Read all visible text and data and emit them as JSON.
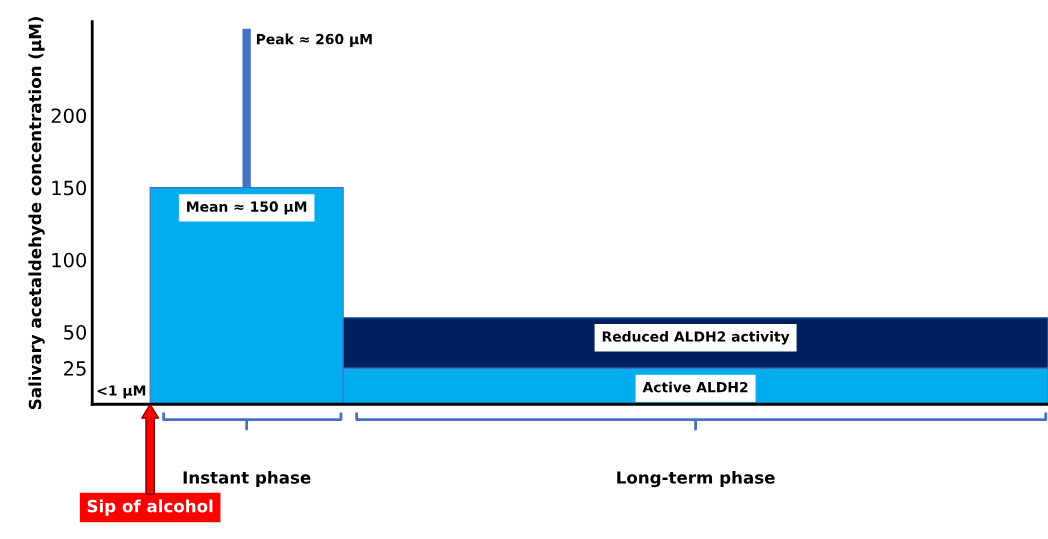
{
  "chart_data": {
    "type": "bar",
    "stacked": true,
    "ylabel": "Salivary acetaldehyde concentration (µM)",
    "categories": [
      "Instant phase",
      "Long-term phase"
    ],
    "series": [
      {
        "color": "#00aeef",
        "values": [
          150,
          25
        ],
        "errors": [
          [
            150,
            260
          ],
          null
        ]
      },
      {
        "color": "#002060",
        "values": [
          null,
          35
        ]
      }
    ],
    "ylim": [
      0,
      265
    ],
    "yticks": [
      25,
      50,
      100,
      150,
      200
    ],
    "grid": false,
    "legend": false,
    "annotations": [
      {
        "text": "Peak ≈ 260 µM",
        "x": "Instant phase",
        "y": 260
      },
      {
        "text": "Mean ≈ 150 µM",
        "x": "Instant phase",
        "y": 150
      },
      {
        "text": "Reduced ALDH2 activity",
        "x": "Long-term phase",
        "y": 60
      },
      {
        "text": "Active ALDH2",
        "x": "Long-term phase",
        "y": 25
      },
      "<1 µM",
      "Sip of alcohol"
    ]
  }
}
